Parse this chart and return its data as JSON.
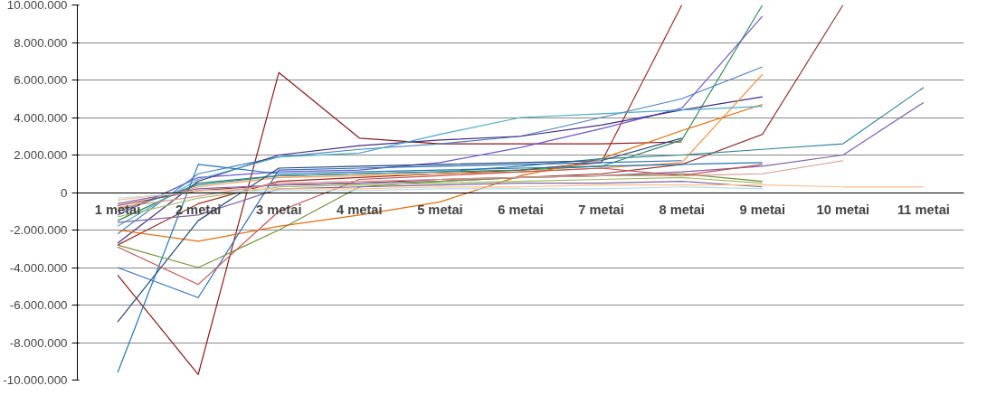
{
  "chart_data": {
    "type": "line",
    "categories": [
      "1 metai",
      "2 metai",
      "3 metai",
      "4 metai",
      "5 metai",
      "6 metai",
      "7 metai",
      "8 metai",
      "9 metai",
      "10 metai",
      "11 metai"
    ],
    "ylim": [
      -10000000,
      10000000
    ],
    "yticks": [
      {
        "value": -10000000,
        "label": "-10.000.000"
      },
      {
        "value": -8000000,
        "label": "-8.000.000"
      },
      {
        "value": -6000000,
        "label": "-6.000.000"
      },
      {
        "value": -4000000,
        "label": "-4.000.000"
      },
      {
        "value": -2000000,
        "label": "-2.000.000"
      },
      {
        "value": 0,
        "label": "0"
      },
      {
        "value": 2000000,
        "label": "2.000.000"
      },
      {
        "value": 4000000,
        "label": "4.000.000"
      },
      {
        "value": 6000000,
        "label": "6.000.000"
      },
      {
        "value": 8000000,
        "label": "8.000.000"
      },
      {
        "value": 10000000,
        "label": "10.000.000"
      }
    ],
    "grid": "y",
    "marker": "none",
    "line_style": "solid",
    "series": [
      {
        "color": "#8b1a1a",
        "values": [
          -4400000,
          -9700000,
          6400000,
          2900000,
          2600000,
          2600000,
          2600000,
          2700000,
          null,
          null,
          null
        ]
      },
      {
        "color": "#9b2d20",
        "values": [
          -2800000,
          -600000,
          600000,
          800000,
          1000000,
          1200000,
          1600000,
          10000000,
          null,
          null,
          null
        ]
      },
      {
        "color": "#2e8b57",
        "values": [
          -1500000,
          500000,
          900000,
          1000000,
          1100000,
          1200000,
          1400000,
          2800000,
          10000000,
          null,
          null
        ]
      },
      {
        "color": "#6a5acd",
        "values": [
          -1200000,
          800000,
          1100000,
          1200000,
          1600000,
          2400000,
          3400000,
          4500000,
          9400000,
          null,
          null
        ]
      },
      {
        "color": "#4f81bd",
        "values": [
          -2200000,
          1000000,
          1900000,
          2300000,
          2600000,
          3000000,
          4000000,
          5000000,
          6700000,
          null,
          null
        ]
      },
      {
        "color": "#403080",
        "values": [
          -2700000,
          600000,
          2000000,
          2500000,
          2800000,
          3000000,
          3600000,
          4400000,
          5100000,
          null,
          null
        ]
      },
      {
        "color": "#f79646",
        "values": [
          -900000,
          300000,
          800000,
          900000,
          1000000,
          1100000,
          1300000,
          1600000,
          6300000,
          null,
          null
        ]
      },
      {
        "color": "#e46c0a",
        "values": [
          -2000000,
          -2600000,
          -1800000,
          -1200000,
          -500000,
          900000,
          1800000,
          3300000,
          4700000,
          null,
          null
        ]
      },
      {
        "color": "#943634",
        "values": [
          -700000,
          100000,
          400000,
          500000,
          700000,
          800000,
          1000000,
          1500000,
          3100000,
          10000000,
          null
        ]
      },
      {
        "color": "#31859c",
        "values": [
          -1000000,
          400000,
          900000,
          1000000,
          1100000,
          1400000,
          1800000,
          2000000,
          2300000,
          2600000,
          5600000
        ]
      },
      {
        "color": "#7f5fa8",
        "values": [
          -600000,
          200000,
          400000,
          500000,
          600000,
          800000,
          900000,
          1100000,
          1400000,
          2000000,
          4800000
        ]
      },
      {
        "color": "#4bacc6",
        "values": [
          -1800000,
          700000,
          1900000,
          2100000,
          3100000,
          4000000,
          4200000,
          4400000,
          4600000,
          null,
          null
        ]
      },
      {
        "color": "#1f77b4",
        "values": [
          -9600000,
          1500000,
          1000000,
          1100000,
          1200000,
          1300000,
          1400000,
          1500000,
          1600000,
          null,
          null
        ]
      },
      {
        "color": "#244a7c",
        "values": [
          -6900000,
          -1500000,
          1300000,
          1400000,
          1500000,
          1600000,
          1700000,
          2900000,
          null,
          null,
          null
        ]
      },
      {
        "color": "#2f6eba",
        "values": [
          -4000000,
          -5600000,
          1200000,
          1300000,
          1400000,
          1500000,
          1600000,
          1700000,
          null,
          null,
          null
        ]
      },
      {
        "color": "#76923c",
        "values": [
          -2800000,
          -4000000,
          -2000000,
          300000,
          600000,
          800000,
          900000,
          1000000,
          600000,
          null,
          null
        ]
      },
      {
        "color": "#c0504d",
        "values": [
          -2900000,
          -4900000,
          -1000000,
          700000,
          900000,
          1100000,
          1300000,
          900000,
          1500000,
          null,
          null
        ]
      },
      {
        "color": "#9bbb59",
        "values": [
          -1300000,
          -300000,
          300000,
          400000,
          500000,
          600000,
          700000,
          800000,
          500000,
          null,
          null
        ]
      },
      {
        "color": "#8064a2",
        "values": [
          -1600000,
          -1200000,
          200000,
          300000,
          400000,
          500000,
          500000,
          600000,
          300000,
          null,
          null
        ]
      },
      {
        "color": "#fac090",
        "values": [
          -400000,
          100000,
          200000,
          200000,
          300000,
          300000,
          400000,
          400000,
          400000,
          300000,
          300000
        ]
      },
      {
        "color": "#b7dee8",
        "values": [
          -300000,
          0,
          100000,
          100000,
          200000,
          200000,
          200000,
          300000,
          200000,
          null,
          null
        ]
      },
      {
        "color": "#d99694",
        "values": [
          -800000,
          -200000,
          500000,
          600000,
          700000,
          800000,
          900000,
          900000,
          1000000,
          1700000,
          null
        ]
      }
    ]
  }
}
